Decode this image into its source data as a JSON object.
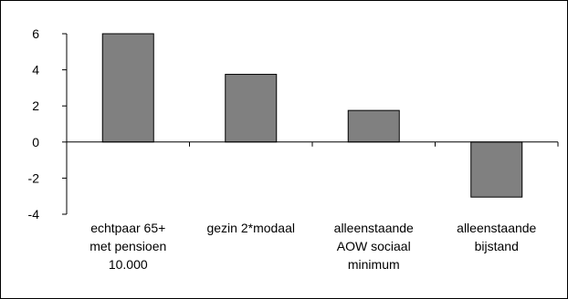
{
  "chart_data": {
    "type": "bar",
    "title": "",
    "xlabel": "",
    "ylabel": "",
    "ylim": [
      -4,
      6
    ],
    "yticks": [
      6,
      4,
      2,
      0,
      -2,
      -4
    ],
    "grid": false,
    "legend": "none",
    "categories": [
      [
        "echtpaar 65+",
        "met pensioen",
        "10.000"
      ],
      [
        "gezin 2*modaal"
      ],
      [
        "alleenstaande",
        "AOW sociaal",
        "minimum"
      ],
      [
        "alleenstaande",
        "bijstand"
      ]
    ],
    "values": [
      6.0,
      3.75,
      1.75,
      -3.05
    ],
    "colors": {
      "bar_fill": "#808080",
      "bar_stroke": "#000000",
      "axis": "#000000"
    }
  }
}
